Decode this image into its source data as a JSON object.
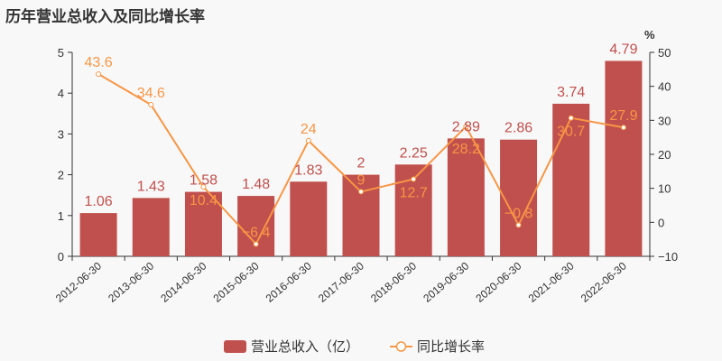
{
  "title": "历年营业总收入及同比增长率",
  "chart_data": {
    "type": "bar+line",
    "title": "历年营业总收入及同比增长率",
    "categories": [
      "2012-06-30",
      "2013-06-30",
      "2014-06-30",
      "2015-06-30",
      "2016-06-30",
      "2017-06-30",
      "2018-06-30",
      "2019-06-30",
      "2020-06-30",
      "2021-06-30",
      "2022-06-30"
    ],
    "series": [
      {
        "name": "营业总收入（亿）",
        "type": "bar",
        "axis": "left",
        "color": "#c0504d",
        "values": [
          1.06,
          1.43,
          1.58,
          1.48,
          1.83,
          2,
          2.25,
          2.89,
          2.86,
          3.74,
          4.79
        ],
        "labels": [
          "1.06",
          "1.43",
          "1.58",
          "1.48",
          "1.83",
          "2",
          "2.25",
          "2.89",
          "2.86",
          "3.74",
          "4.79"
        ]
      },
      {
        "name": "同比增长率",
        "type": "line",
        "axis": "right",
        "color": "#f79646",
        "values": [
          43.6,
          34.6,
          10.4,
          -6.4,
          24,
          9,
          12.7,
          28.2,
          -0.8,
          30.7,
          27.9
        ],
        "labels": [
          "43.6",
          "34.6",
          "10.4",
          "-6.4",
          "24",
          "9",
          "12.7",
          "28.2",
          "-0.8",
          "30.7",
          "27.9"
        ]
      }
    ],
    "left_axis": {
      "ylim": [
        0,
        5
      ],
      "ticks": [
        "0",
        "1",
        "2",
        "3",
        "4",
        "5"
      ]
    },
    "right_axis": {
      "label": "%",
      "ylim": [
        -10,
        50
      ],
      "ticks": [
        "-10",
        "0",
        "10",
        "20",
        "30",
        "40",
        "50"
      ]
    },
    "grid": false,
    "legend": "bottom"
  }
}
